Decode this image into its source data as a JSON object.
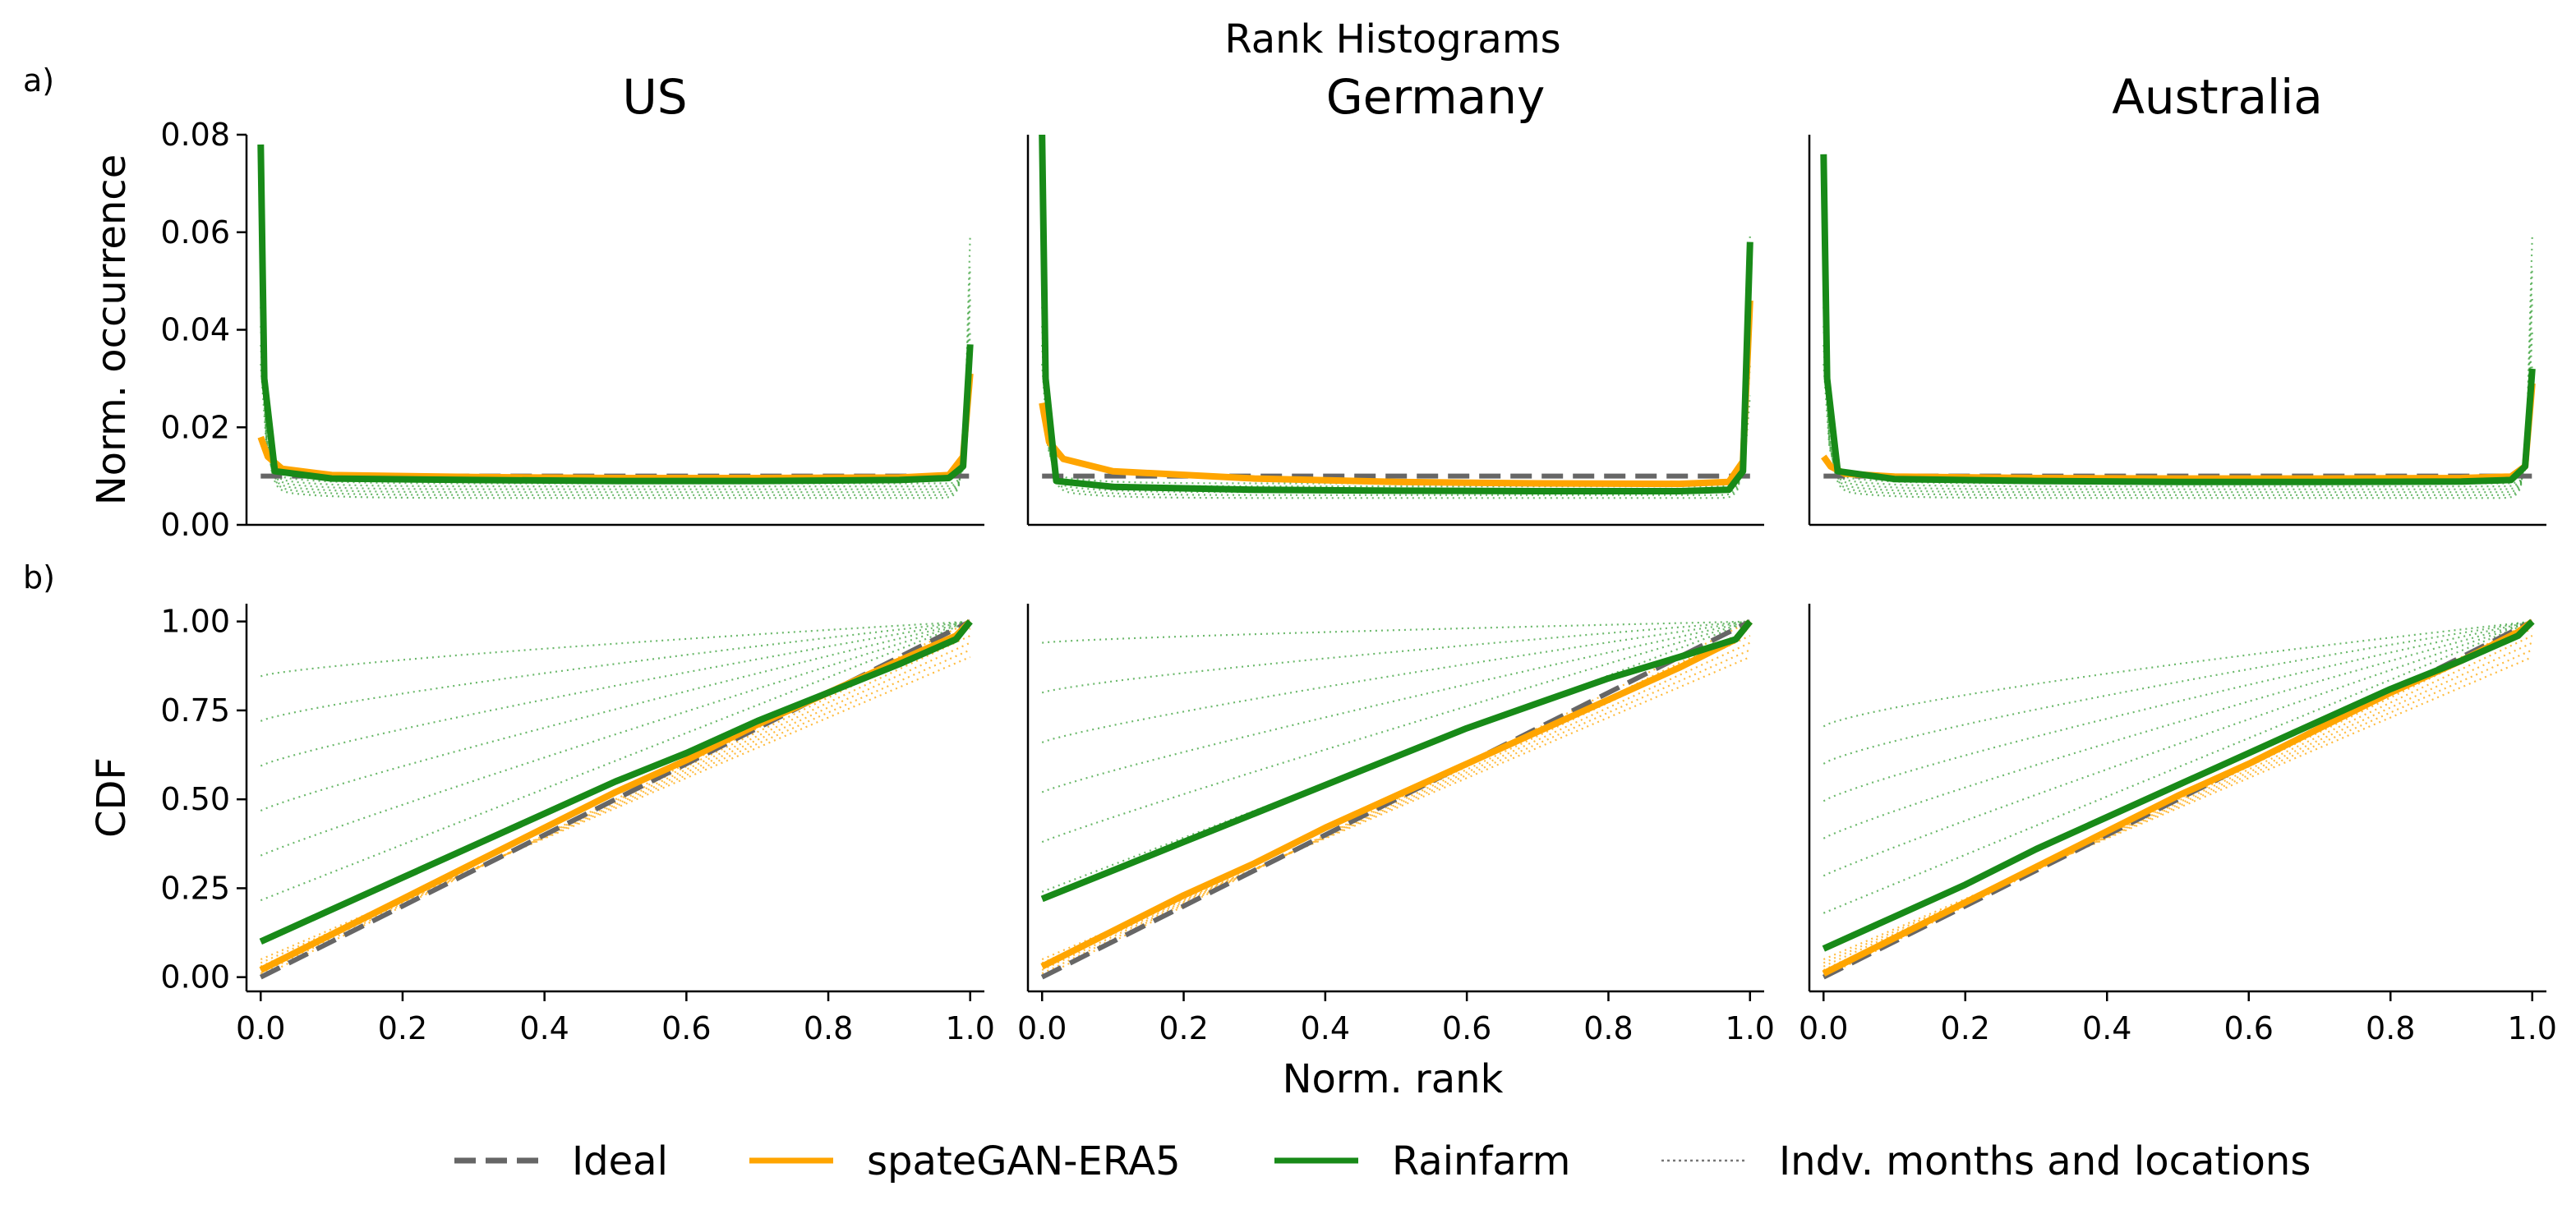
{
  "figure": {
    "suptitle": "Rank Histograms",
    "panel_labels": [
      "a)",
      "b)"
    ],
    "colors": {
      "ideal": "#666666",
      "spategan": "#ffa500",
      "rainfarm": "#188a18",
      "indv_rainfarm": "#2e9b2e",
      "indv_spategan": "#ffa500",
      "indv_legend": "#777777"
    }
  },
  "legend": {
    "items": [
      {
        "key": "ideal",
        "label": "Ideal",
        "style": "dashed"
      },
      {
        "key": "spategan",
        "label": "spateGAN-ERA5",
        "style": "solid"
      },
      {
        "key": "rainfarm",
        "label": "Rainfarm",
        "style": "solid"
      },
      {
        "key": "indv",
        "label": "Indv. months and locations",
        "style": "dotted"
      }
    ]
  },
  "chart_data": [
    {
      "type": "line",
      "row": "a",
      "regions": [
        "US",
        "Germany",
        "Australia"
      ],
      "ylabel": "Norm. occurrence",
      "xlabel": "",
      "xlim": [
        -0.02,
        1.02
      ],
      "ylim": [
        0,
        0.08
      ],
      "yticks": [
        0,
        0.02,
        0.04,
        0.06,
        0.08
      ],
      "ytick_labels": [
        "0.00",
        "0.02",
        "0.04",
        "0.06",
        "0.08"
      ],
      "series_by_region": {
        "US": [
          {
            "name": "Ideal",
            "x": [
              0,
              1
            ],
            "y": [
              0.01,
              0.01
            ]
          },
          {
            "name": "spateGAN-ERA5",
            "x": [
              0,
              0.01,
              0.03,
              0.1,
              0.3,
              0.5,
              0.7,
              0.9,
              0.97,
              0.99,
              1.0
            ],
            "y": [
              0.018,
              0.014,
              0.0115,
              0.0102,
              0.0098,
              0.0096,
              0.0096,
              0.0097,
              0.0102,
              0.014,
              0.031
            ]
          },
          {
            "name": "Rainfarm",
            "x": [
              0,
              0.005,
              0.02,
              0.1,
              0.3,
              0.5,
              0.7,
              0.9,
              0.97,
              0.99,
              1.0
            ],
            "y": [
              0.078,
              0.03,
              0.011,
              0.0095,
              0.0092,
              0.009,
              0.009,
              0.0092,
              0.0096,
              0.012,
              0.037
            ]
          }
        ],
        "Germany": [
          {
            "name": "Ideal",
            "x": [
              0,
              1
            ],
            "y": [
              0.01,
              0.01
            ]
          },
          {
            "name": "spateGAN-ERA5",
            "x": [
              0,
              0.01,
              0.03,
              0.1,
              0.3,
              0.5,
              0.7,
              0.9,
              0.97,
              0.99,
              1.0
            ],
            "y": [
              0.025,
              0.017,
              0.0135,
              0.011,
              0.0095,
              0.0088,
              0.0085,
              0.0084,
              0.0088,
              0.013,
              0.046
            ]
          },
          {
            "name": "Rainfarm",
            "x": [
              0,
              0.005,
              0.02,
              0.1,
              0.3,
              0.5,
              0.7,
              0.9,
              0.97,
              0.99,
              1.0
            ],
            "y": [
              0.08,
              0.03,
              0.009,
              0.0078,
              0.0072,
              0.007,
              0.0069,
              0.0069,
              0.0072,
              0.011,
              0.058
            ]
          }
        ],
        "Australia": [
          {
            "name": "Ideal",
            "x": [
              0,
              1
            ],
            "y": [
              0.01,
              0.01
            ]
          },
          {
            "name": "spateGAN-ERA5",
            "x": [
              0,
              0.01,
              0.03,
              0.1,
              0.3,
              0.5,
              0.7,
              0.9,
              0.97,
              0.99,
              1.0
            ],
            "y": [
              0.014,
              0.012,
              0.0105,
              0.0099,
              0.0096,
              0.0095,
              0.0095,
              0.0096,
              0.0099,
              0.012,
              0.029
            ]
          },
          {
            "name": "Rainfarm",
            "x": [
              0,
              0.005,
              0.02,
              0.1,
              0.3,
              0.5,
              0.7,
              0.9,
              0.97,
              0.99,
              1.0
            ],
            "y": [
              0.076,
              0.03,
              0.011,
              0.0094,
              0.009,
              0.0088,
              0.0088,
              0.0089,
              0.0092,
              0.012,
              0.032
            ]
          }
        ]
      }
    },
    {
      "type": "line",
      "row": "b",
      "regions": [
        "US",
        "Germany",
        "Australia"
      ],
      "ylabel": "CDF",
      "xlabel": "Norm. rank",
      "xlim": [
        -0.02,
        1.02
      ],
      "ylim": [
        -0.04,
        1.05
      ],
      "xticks": [
        0,
        0.2,
        0.4,
        0.6,
        0.8,
        1.0
      ],
      "xtick_labels": [
        "0.0",
        "0.2",
        "0.4",
        "0.6",
        "0.8",
        "1.0"
      ],
      "yticks": [
        0,
        0.25,
        0.5,
        0.75,
        1.0
      ],
      "ytick_labels": [
        "0.00",
        "0.25",
        "0.50",
        "0.75",
        "1.00"
      ],
      "series_by_region": {
        "US": [
          {
            "name": "Ideal",
            "x": [
              0,
              1
            ],
            "y": [
              0,
              1
            ]
          },
          {
            "name": "spateGAN-ERA5",
            "x": [
              0,
              0.1,
              0.2,
              0.3,
              0.4,
              0.5,
              0.6,
              0.7,
              0.8,
              0.9,
              0.98,
              1.0
            ],
            "y": [
              0.02,
              0.12,
              0.22,
              0.32,
              0.42,
              0.52,
              0.61,
              0.71,
              0.8,
              0.89,
              0.96,
              1.0
            ]
          },
          {
            "name": "Rainfarm",
            "x": [
              0,
              0.1,
              0.2,
              0.3,
              0.4,
              0.5,
              0.6,
              0.7,
              0.8,
              0.9,
              0.98,
              1.0
            ],
            "y": [
              0.1,
              0.19,
              0.28,
              0.37,
              0.46,
              0.55,
              0.63,
              0.72,
              0.8,
              0.88,
              0.95,
              1.0
            ]
          }
        ],
        "Germany": [
          {
            "name": "Ideal",
            "x": [
              0,
              1
            ],
            "y": [
              0,
              1
            ]
          },
          {
            "name": "spateGAN-ERA5",
            "x": [
              0,
              0.1,
              0.2,
              0.3,
              0.4,
              0.5,
              0.6,
              0.7,
              0.8,
              0.9,
              0.98,
              1.0
            ],
            "y": [
              0.03,
              0.13,
              0.23,
              0.32,
              0.42,
              0.51,
              0.6,
              0.69,
              0.78,
              0.87,
              0.95,
              1.0
            ]
          },
          {
            "name": "Rainfarm",
            "x": [
              0,
              0.1,
              0.2,
              0.3,
              0.4,
              0.5,
              0.6,
              0.7,
              0.8,
              0.9,
              0.98,
              1.0
            ],
            "y": [
              0.22,
              0.3,
              0.38,
              0.46,
              0.54,
              0.62,
              0.7,
              0.77,
              0.84,
              0.9,
              0.95,
              1.0
            ]
          }
        ],
        "Australia": [
          {
            "name": "Ideal",
            "x": [
              0,
              1
            ],
            "y": [
              0,
              1
            ]
          },
          {
            "name": "spateGAN-ERA5",
            "x": [
              0,
              0.1,
              0.2,
              0.3,
              0.4,
              0.5,
              0.6,
              0.7,
              0.8,
              0.9,
              0.98,
              1.0
            ],
            "y": [
              0.01,
              0.11,
              0.21,
              0.31,
              0.41,
              0.51,
              0.6,
              0.7,
              0.8,
              0.89,
              0.97,
              1.0
            ]
          },
          {
            "name": "Rainfarm",
            "x": [
              0,
              0.1,
              0.2,
              0.3,
              0.4,
              0.5,
              0.6,
              0.7,
              0.8,
              0.9,
              0.98,
              1.0
            ],
            "y": [
              0.08,
              0.17,
              0.26,
              0.36,
              0.45,
              0.54,
              0.63,
              0.72,
              0.81,
              0.89,
              0.96,
              1.0
            ]
          }
        ]
      }
    }
  ]
}
